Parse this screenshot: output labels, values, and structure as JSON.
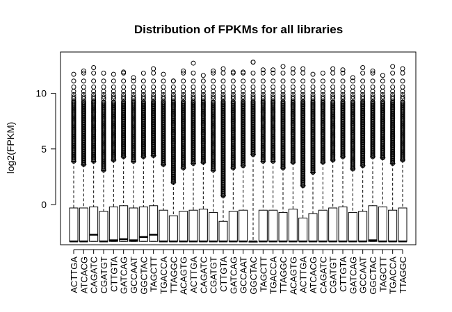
{
  "chart_data": {
    "type": "boxplot",
    "title": "Distribution of FPKMs for all libraries",
    "xlabel": "",
    "ylabel": "log2(FPKM)",
    "ylim": [
      -3.6,
      13.7
    ],
    "yticks": [
      0,
      5,
      10
    ],
    "grid": false,
    "legend": "none",
    "categories": [
      "ACTTGA",
      "ATCACG",
      "CAGATC",
      "CGATGT",
      "CTTGTA",
      "GATCAG",
      "GCCAAT",
      "GGCTAC",
      "TAGCTT",
      "TGACCA",
      "TTAGGC",
      "ACAGTG",
      "ACTTGA",
      "CAGATC",
      "CGATGT",
      "CTTGTA",
      "GATCAG",
      "GCCAAT",
      "GGCTAC",
      "TAGCTT",
      "TGACCA",
      "TTAGGC",
      "ACAGTG",
      "ACTTGA",
      "ATCACG",
      "CAGATC",
      "CGATGT",
      "CTTGTA",
      "GATCAG",
      "GCCAAT",
      "GGCTAC",
      "TAGCTT",
      "TGACCA",
      "TTAGGC"
    ],
    "boxes": [
      {
        "lower_whisker": -3.3,
        "q1": -3.3,
        "median": -3.3,
        "q3": -0.3,
        "upper_whisker": 3.9,
        "outliers_min": 3.9,
        "outliers_max": 11.7
      },
      {
        "lower_whisker": -3.3,
        "q1": -3.3,
        "median": -3.3,
        "q3": -0.3,
        "upper_whisker": 3.6,
        "outliers_min": 3.6,
        "outliers_max": 12.0
      },
      {
        "lower_whisker": -3.3,
        "q1": -3.3,
        "median": -2.7,
        "q3": -0.2,
        "upper_whisker": 3.9,
        "outliers_min": 3.9,
        "outliers_max": 12.3
      },
      {
        "lower_whisker": -3.3,
        "q1": -3.3,
        "median": -3.3,
        "q3": -0.6,
        "upper_whisker": 3.1,
        "outliers_min": 3.1,
        "outliers_max": 11.8
      },
      {
        "lower_whisker": -3.3,
        "q1": -3.3,
        "median": -3.2,
        "q3": -0.2,
        "upper_whisker": 4.0,
        "outliers_min": 4.0,
        "outliers_max": 11.7
      },
      {
        "lower_whisker": -3.3,
        "q1": -3.3,
        "median": -3.1,
        "q3": -0.1,
        "upper_whisker": 4.3,
        "outliers_min": 4.3,
        "outliers_max": 11.9
      },
      {
        "lower_whisker": -3.3,
        "q1": -3.3,
        "median": -3.2,
        "q3": -0.3,
        "upper_whisker": 3.9,
        "outliers_min": 3.9,
        "outliers_max": 11.4
      },
      {
        "lower_whisker": -3.3,
        "q1": -3.3,
        "median": -2.9,
        "q3": -0.2,
        "upper_whisker": 4.3,
        "outliers_min": 4.3,
        "outliers_max": 11.8
      },
      {
        "lower_whisker": -3.3,
        "q1": -3.3,
        "median": -2.7,
        "q3": -0.1,
        "upper_whisker": 4.4,
        "outliers_min": 4.4,
        "outliers_max": 12.2
      },
      {
        "lower_whisker": -3.3,
        "q1": -3.3,
        "median": -3.3,
        "q3": -0.5,
        "upper_whisker": 3.6,
        "outliers_min": 3.6,
        "outliers_max": 11.7
      },
      {
        "lower_whisker": -3.3,
        "q1": -3.3,
        "median": -3.3,
        "q3": -1.0,
        "upper_whisker": 2.0,
        "outliers_min": 2.0,
        "outliers_max": 11.1
      },
      {
        "lower_whisker": -3.3,
        "q1": -3.3,
        "median": -3.3,
        "q3": -0.6,
        "upper_whisker": 3.3,
        "outliers_min": 3.3,
        "outliers_max": 12.0
      },
      {
        "lower_whisker": -3.3,
        "q1": -3.3,
        "median": -3.3,
        "q3": -0.5,
        "upper_whisker": 3.7,
        "outliers_min": 3.7,
        "outliers_max": 12.7
      },
      {
        "lower_whisker": -3.3,
        "q1": -3.3,
        "median": -3.3,
        "q3": -0.4,
        "upper_whisker": 3.8,
        "outliers_min": 3.8,
        "outliers_max": 11.6
      },
      {
        "lower_whisker": -3.3,
        "q1": -3.3,
        "median": -3.3,
        "q3": -0.7,
        "upper_whisker": 3.1,
        "outliers_min": 3.1,
        "outliers_max": 12.0
      },
      {
        "lower_whisker": -3.3,
        "q1": -3.3,
        "median": -3.3,
        "q3": -1.5,
        "upper_whisker": 0.8,
        "outliers_min": 0.8,
        "outliers_max": 12.2
      },
      {
        "lower_whisker": -3.3,
        "q1": -3.3,
        "median": -3.3,
        "q3": -0.6,
        "upper_whisker": 3.3,
        "outliers_min": 3.3,
        "outliers_max": 11.9
      },
      {
        "lower_whisker": -3.3,
        "q1": -3.3,
        "median": -3.3,
        "q3": -0.5,
        "upper_whisker": 3.5,
        "outliers_min": 3.5,
        "outliers_max": 11.9
      },
      {
        "lower_whisker": -3.3,
        "q1": -3.3,
        "median": -3.3,
        "q3": -3.3,
        "upper_whisker": 4.5,
        "outliers_min": 4.5,
        "outliers_max": 12.8
      },
      {
        "lower_whisker": -3.3,
        "q1": -3.3,
        "median": -3.3,
        "q3": -0.5,
        "upper_whisker": 3.9,
        "outliers_min": 3.9,
        "outliers_max": 12.1
      },
      {
        "lower_whisker": -3.3,
        "q1": -3.3,
        "median": -3.3,
        "q3": -0.5,
        "upper_whisker": 3.9,
        "outliers_min": 3.9,
        "outliers_max": 12.1
      },
      {
        "lower_whisker": -3.3,
        "q1": -3.3,
        "median": -3.3,
        "q3": -0.7,
        "upper_whisker": 3.3,
        "outliers_min": 3.3,
        "outliers_max": 12.4
      },
      {
        "lower_whisker": -3.3,
        "q1": -3.3,
        "median": -3.3,
        "q3": -0.4,
        "upper_whisker": 3.8,
        "outliers_min": 3.8,
        "outliers_max": 12.2
      },
      {
        "lower_whisker": -3.3,
        "q1": -3.3,
        "median": -3.3,
        "q3": -1.2,
        "upper_whisker": 1.7,
        "outliers_min": 1.7,
        "outliers_max": 12.2
      },
      {
        "lower_whisker": -3.3,
        "q1": -3.3,
        "median": -3.3,
        "q3": -0.8,
        "upper_whisker": 2.9,
        "outliers_min": 2.9,
        "outliers_max": 11.7
      },
      {
        "lower_whisker": -3.3,
        "q1": -3.3,
        "median": -3.3,
        "q3": -0.5,
        "upper_whisker": 3.8,
        "outliers_min": 3.8,
        "outliers_max": 11.8
      },
      {
        "lower_whisker": -3.3,
        "q1": -3.3,
        "median": -3.3,
        "q3": -0.3,
        "upper_whisker": 4.0,
        "outliers_min": 4.0,
        "outliers_max": 12.2
      },
      {
        "lower_whisker": -3.3,
        "q1": -3.3,
        "median": -3.3,
        "q3": -0.2,
        "upper_whisker": 4.3,
        "outliers_min": 4.3,
        "outliers_max": 12.1
      },
      {
        "lower_whisker": -3.3,
        "q1": -3.3,
        "median": -3.3,
        "q3": -0.7,
        "upper_whisker": 3.2,
        "outliers_min": 3.2,
        "outliers_max": 11.4
      },
      {
        "lower_whisker": -3.3,
        "q1": -3.3,
        "median": -3.3,
        "q3": -0.6,
        "upper_whisker": 3.5,
        "outliers_min": 3.5,
        "outliers_max": 12.3
      },
      {
        "lower_whisker": -3.3,
        "q1": -3.3,
        "median": -3.2,
        "q3": -0.1,
        "upper_whisker": 4.3,
        "outliers_min": 4.3,
        "outliers_max": 12.0
      },
      {
        "lower_whisker": -3.3,
        "q1": -3.3,
        "median": -3.3,
        "q3": -0.2,
        "upper_whisker": 4.2,
        "outliers_min": 4.2,
        "outliers_max": 11.6
      },
      {
        "lower_whisker": -3.3,
        "q1": -3.3,
        "median": -3.3,
        "q3": -0.5,
        "upper_whisker": 3.7,
        "outliers_min": 3.7,
        "outliers_max": 12.4
      },
      {
        "lower_whisker": -3.3,
        "q1": -3.3,
        "median": -3.3,
        "q3": -0.3,
        "upper_whisker": 4.0,
        "outliers_min": 4.0,
        "outliers_max": 12.2
      }
    ]
  }
}
